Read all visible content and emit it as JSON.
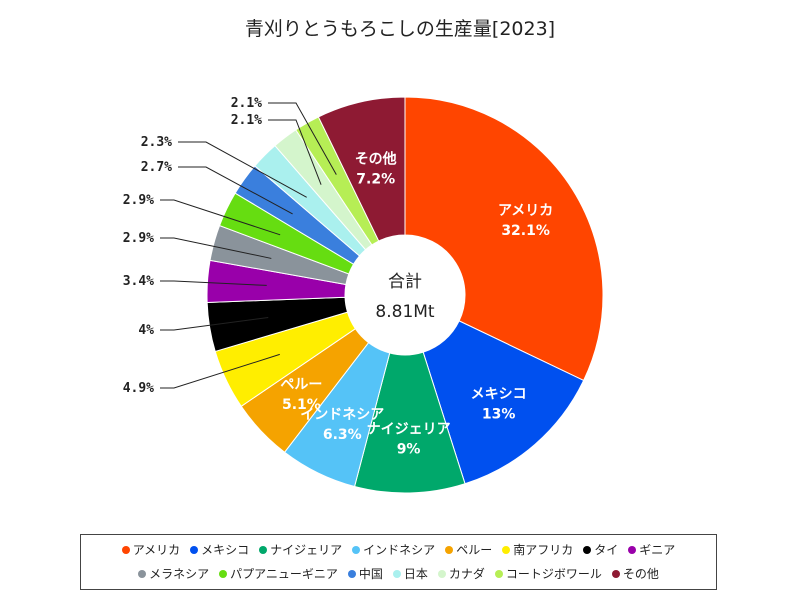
{
  "chart_data": {
    "type": "pie",
    "title": "青刈りとうもろこしの生産量[2023]",
    "center_label": "合計",
    "center_value": "8.81Mt",
    "slices": [
      {
        "name": "アメリカ",
        "value": 32.1,
        "label": "32.1%",
        "color": "#ff4500"
      },
      {
        "name": "メキシコ",
        "value": 13.0,
        "label": "13%",
        "color": "#0050ef"
      },
      {
        "name": "ナイジェリア",
        "value": 9.0,
        "label": "9%",
        "color": "#00a86b"
      },
      {
        "name": "インドネシア",
        "value": 6.3,
        "label": "6.3%",
        "color": "#55c3f7"
      },
      {
        "name": "ペルー",
        "value": 5.1,
        "label": "5.1%",
        "color": "#f5a300"
      },
      {
        "name": "南アフリカ",
        "value": 4.9,
        "label": "4.9%",
        "color": "#ffee00"
      },
      {
        "name": "タイ",
        "value": 4.0,
        "label": "4%",
        "color": "#000000"
      },
      {
        "name": "ギニア",
        "value": 3.4,
        "label": "3.4%",
        "color": "#9900aa"
      },
      {
        "name": "メラネシア",
        "value": 2.9,
        "label": "2.9%",
        "color": "#8a939b"
      },
      {
        "name": "パプアニューギニア",
        "value": 2.9,
        "label": "2.9%",
        "color": "#66dd11"
      },
      {
        "name": "中国",
        "value": 2.7,
        "label": "2.7%",
        "color": "#3a7fdd"
      },
      {
        "name": "日本",
        "value": 2.3,
        "label": "2.3%",
        "color": "#aaf0ee"
      },
      {
        "name": "カナダ",
        "value": 2.1,
        "label": "2.1%",
        "color": "#d4f5cc"
      },
      {
        "name": "コートジボワール",
        "value": 2.1,
        "label": "2.1%",
        "color": "#b6ee55"
      },
      {
        "name": "その他",
        "value": 7.2,
        "label": "7.2%",
        "color": "#8e1a33"
      }
    ],
    "legend_position": "bottom"
  }
}
